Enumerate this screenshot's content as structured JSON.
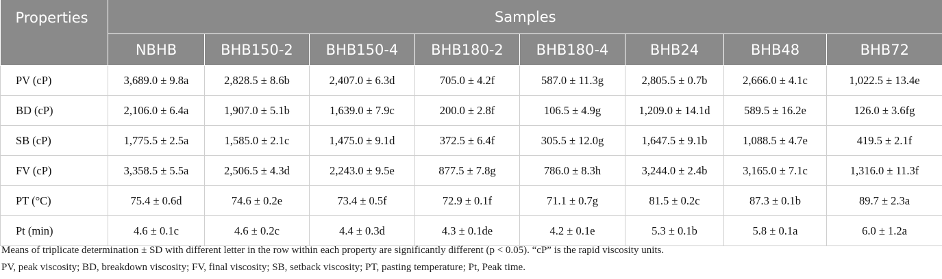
{
  "table": {
    "header": {
      "corner": "Properties",
      "group": "Samples",
      "columns": [
        "NBHB",
        "BHB150-2",
        "BHB150-4",
        "BHB180-2",
        "BHB180-4",
        "BHB24",
        "BHB48",
        "BHB72"
      ]
    },
    "rows": [
      [
        "PV (cP)",
        "3,689.0 ± 9.8a",
        "2,828.5 ± 8.6b",
        "2,407.0 ± 6.3d",
        "705.0 ± 4.2f",
        "587.0 ± 11.3g",
        "2,805.5 ± 0.7b",
        "2,666.0 ± 4.1c",
        "1,022.5 ± 13.4e"
      ],
      [
        "BD (cP)",
        "2,106.0 ± 6.4a",
        "1,907.0 ± 5.1b",
        "1,639.0 ± 7.9c",
        "200.0 ± 2.8f",
        "106.5 ± 4.9g",
        "1,209.0 ± 14.1d",
        "589.5 ± 16.2e",
        "126.0 ± 3.6fg"
      ],
      [
        "SB (cP)",
        "1,775.5 ± 2.5a",
        "1,585.0 ± 2.1c",
        "1,475.0 ± 9.1d",
        "372.5 ± 6.4f",
        "305.5 ± 12.0g",
        "1,647.5 ± 9.1b",
        "1,088.5 ± 4.7e",
        "419.5 ± 2.1f"
      ],
      [
        "FV (cP)",
        "3,358.5 ± 5.5a",
        "2,506.5 ± 4.3d",
        "2,243.0 ± 9.5e",
        "877.5 ± 7.8g",
        "786.0 ± 8.3h",
        "3,244.0 ± 2.4b",
        "3,165.0 ± 7.1c",
        "1,316.0 ± 11.3f"
      ],
      [
        "PT (°C)",
        "75.4 ± 0.6d",
        "74.6 ± 0.2e",
        "73.4 ± 0.5f",
        "72.9 ± 0.1f",
        "71.1 ± 0.7g",
        "81.5 ± 0.2c",
        "87.3 ± 0.1b",
        "89.7 ± 2.3a"
      ],
      [
        "Pt (min)",
        "4.6 ± 0.1c",
        "4.6 ± 0.2c",
        "4.4 ± 0.3d",
        "4.3 ± 0.1de",
        "4.2 ± 0.1e",
        "5.3 ± 0.1b",
        "5.8 ± 0.1a",
        "6.0 ± 1.2a"
      ]
    ]
  },
  "notes": [
    "Means of triplicate determination ± SD with different letter in the row within each property are significantly different (p < 0.05). “cP” is the rapid viscosity units.",
    "PV, peak viscosity; BD, breakdown viscosity; FV, final viscosity; SB, setback viscosity; PT, pasting temperature; Pt, Peak time."
  ]
}
